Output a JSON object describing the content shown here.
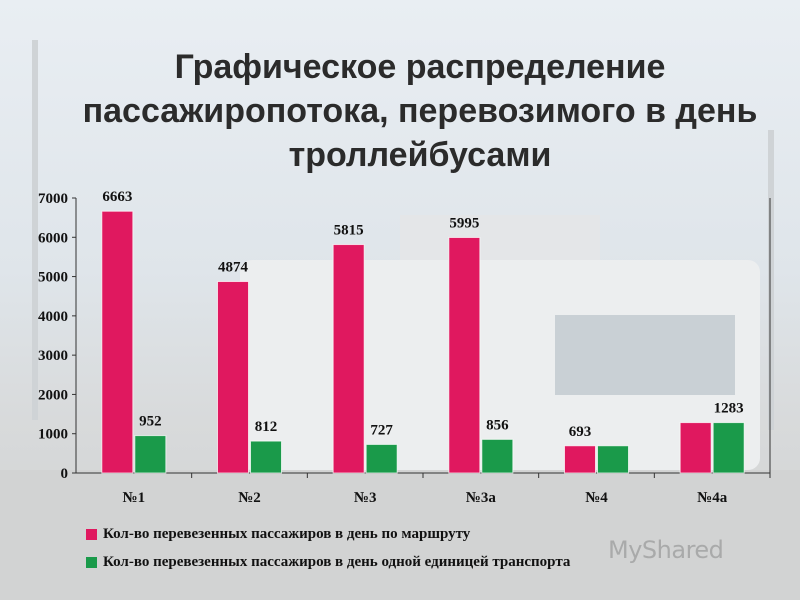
{
  "title_lines": [
    "Графическое распределение",
    "пассажиропотока, перевозимого в день",
    "троллейбусами"
  ],
  "watermark": "MyShared",
  "colors": {
    "series1": "#e0185f",
    "series2": "#1a9a4a"
  },
  "chart_data": {
    "type": "bar",
    "categories": [
      "№1",
      "№2",
      "№3",
      "№3а",
      "№4",
      "№4а"
    ],
    "series": [
      {
        "name": "Кол-во перевезенных пассажиров в день по маршруту",
        "values": [
          6663,
          4874,
          5815,
          5995,
          693,
          1283
        ]
      },
      {
        "name": "Кол-во перевезенных пассажиров в день одной единицей транспорта",
        "values": [
          952,
          812,
          727,
          856,
          693,
          1283
        ]
      }
    ],
    "data_labels": [
      "6663",
      "952",
      "4874",
      "812",
      "5815",
      "727",
      "5995",
      "856",
      "693",
      "1283"
    ],
    "y_ticks": [
      "0",
      "1000",
      "2000",
      "3000",
      "4000",
      "5000",
      "6000",
      "7000"
    ],
    "ylim": [
      0,
      7000
    ],
    "legend_position": "bottom",
    "grid": false
  }
}
